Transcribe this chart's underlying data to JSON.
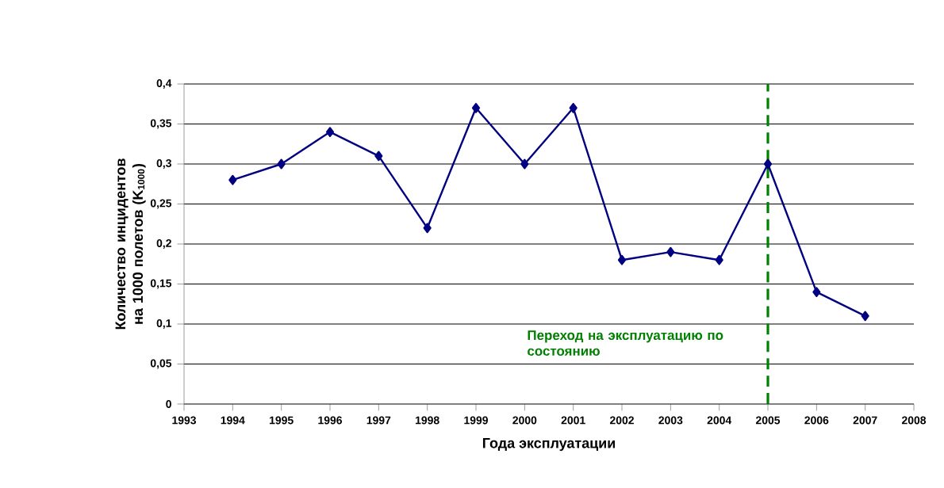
{
  "chart_data": {
    "type": "line",
    "xlabel": "Года эксплуатации",
    "ylabel": "Количество инцидентов на 1000 полетов (K$_{1000}$)",
    "x": [
      1994,
      1995,
      1996,
      1997,
      1998,
      1999,
      2000,
      2001,
      2002,
      2003,
      2004,
      2005,
      2006,
      2007
    ],
    "series": [
      {
        "color": "#000080",
        "values": [
          0.28,
          0.3,
          0.34,
          0.31,
          0.22,
          0.37,
          0.3,
          0.37,
          0.18,
          0.19,
          0.18,
          0.3,
          0.14,
          0.11
        ]
      }
    ],
    "xlim": [
      1993,
      2008
    ],
    "xticks": [
      1993,
      1994,
      1995,
      1996,
      1997,
      1998,
      1999,
      2000,
      2001,
      2002,
      2003,
      2004,
      2005,
      2006,
      2007,
      2008
    ],
    "ylim": [
      0,
      0.4
    ],
    "yticks": [
      0,
      {
        "value": 0.05,
        "label": "0,05"
      },
      {
        "value": 0.1,
        "label": "0,1"
      },
      {
        "value": 0.15,
        "label": "0,15"
      },
      {
        "value": 0.2,
        "label": "0,2"
      },
      {
        "value": 0.25,
        "label": "0,25"
      },
      {
        "value": 0.3,
        "label": "0,3"
      },
      {
        "value": 0.35,
        "label": "0,35"
      },
      {
        "value": 0.4,
        "label": "0,4"
      }
    ],
    "ref_lines": [
      {
        "axis": "x",
        "value": 2005,
        "label": "Переход на эксплуатацию по состоянию",
        "color": "#008000",
        "line_style": "dashed"
      }
    ],
    "grid": "y",
    "marker": "diamond",
    "line_style": "solid"
  }
}
